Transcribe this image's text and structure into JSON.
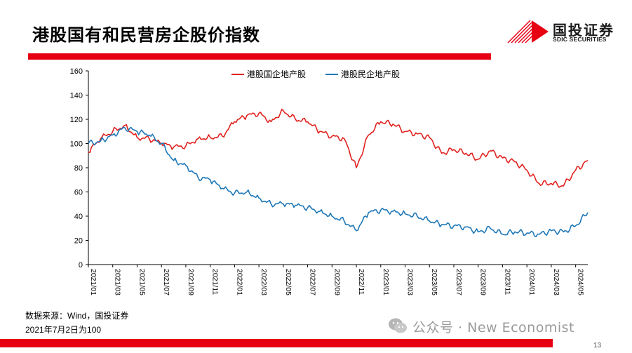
{
  "slide": {
    "title": "港股国有和民营房企股价指数",
    "logo": {
      "cn": "国投证券",
      "en": "SDIC SECURITIES"
    },
    "source_note": "数据来源：Wind，国投证券",
    "base_note": "2021年7月2日为100",
    "watermark": "公众号 · New Economist",
    "page_number": "13",
    "colors": {
      "brand_red": "#e60012",
      "series_red": "#e0231f",
      "series_blue": "#1f78b8"
    }
  },
  "chart_data": {
    "type": "line",
    "title": "",
    "xlabel": "",
    "ylabel": "",
    "ylim": [
      0,
      160
    ],
    "yticks": [
      0,
      20,
      40,
      60,
      80,
      100,
      120,
      140,
      160
    ],
    "xlim": [
      "2021/01",
      "2024/06"
    ],
    "xtick_labels": [
      "2021/01",
      "2021/03",
      "2021/05",
      "2021/07",
      "2021/09",
      "2021/11",
      "2022/01",
      "2022/03",
      "2022/05",
      "2022/07",
      "2022/09",
      "2022/11",
      "2023/01",
      "2023/03",
      "2023/05",
      "2023/07",
      "2023/09",
      "2023/11",
      "2024/01",
      "2024/03",
      "2024/05"
    ],
    "grid": false,
    "legend_position": "top",
    "series": [
      {
        "name": "港股国企地产股",
        "color": "#e0231f",
        "points": [
          [
            "2021/01",
            93
          ],
          [
            "2021/02",
            104
          ],
          [
            "2021/03",
            110
          ],
          [
            "2021/04",
            115
          ],
          [
            "2021/05",
            105
          ],
          [
            "2021/06",
            104
          ],
          [
            "2021/07",
            100
          ],
          [
            "2021/08",
            97
          ],
          [
            "2021/09",
            98
          ],
          [
            "2021/10",
            104
          ],
          [
            "2021/11",
            105
          ],
          [
            "2021/12",
            106
          ],
          [
            "2022/01",
            118
          ],
          [
            "2022/02",
            123
          ],
          [
            "2022/03",
            125
          ],
          [
            "2022/04",
            118
          ],
          [
            "2022/05",
            127
          ],
          [
            "2022/06",
            120
          ],
          [
            "2022/07",
            118
          ],
          [
            "2022/08",
            110
          ],
          [
            "2022/09",
            106
          ],
          [
            "2022/10",
            104
          ],
          [
            "2022/11",
            80
          ],
          [
            "2022/12",
            107
          ],
          [
            "2023/01",
            118
          ],
          [
            "2023/02",
            116
          ],
          [
            "2023/03",
            110
          ],
          [
            "2023/04",
            108
          ],
          [
            "2023/05",
            105
          ],
          [
            "2023/06",
            92
          ],
          [
            "2023/07",
            95
          ],
          [
            "2023/08",
            92
          ],
          [
            "2023/09",
            87
          ],
          [
            "2023/10",
            94
          ],
          [
            "2023/11",
            88
          ],
          [
            "2023/12",
            85
          ],
          [
            "2024/01",
            78
          ],
          [
            "2024/02",
            67
          ],
          [
            "2024/03",
            67
          ],
          [
            "2024/04",
            65
          ],
          [
            "2024/05",
            78
          ],
          [
            "2024/06",
            86
          ]
        ]
      },
      {
        "name": "港股民企地产股",
        "color": "#1f78b8",
        "points": [
          [
            "2021/01",
            100
          ],
          [
            "2021/02",
            102
          ],
          [
            "2021/03",
            107
          ],
          [
            "2021/04",
            113
          ],
          [
            "2021/05",
            110
          ],
          [
            "2021/06",
            107
          ],
          [
            "2021/07",
            100
          ],
          [
            "2021/08",
            86
          ],
          [
            "2021/09",
            82
          ],
          [
            "2021/10",
            72
          ],
          [
            "2021/11",
            70
          ],
          [
            "2021/12",
            63
          ],
          [
            "2022/01",
            59
          ],
          [
            "2022/02",
            60
          ],
          [
            "2022/03",
            55
          ],
          [
            "2022/04",
            50
          ],
          [
            "2022/05",
            50
          ],
          [
            "2022/06",
            49
          ],
          [
            "2022/07",
            47
          ],
          [
            "2022/08",
            44
          ],
          [
            "2022/09",
            40
          ],
          [
            "2022/10",
            36
          ],
          [
            "2022/11",
            28
          ],
          [
            "2022/12",
            43
          ],
          [
            "2023/01",
            45
          ],
          [
            "2023/02",
            44
          ],
          [
            "2023/03",
            42
          ],
          [
            "2023/04",
            40
          ],
          [
            "2023/05",
            36
          ],
          [
            "2023/06",
            33
          ],
          [
            "2023/07",
            32
          ],
          [
            "2023/08",
            31
          ],
          [
            "2023/09",
            27
          ],
          [
            "2023/10",
            30
          ],
          [
            "2023/11",
            25
          ],
          [
            "2023/12",
            27
          ],
          [
            "2024/01",
            26
          ],
          [
            "2024/02",
            25
          ],
          [
            "2024/03",
            28
          ],
          [
            "2024/04",
            27
          ],
          [
            "2024/05",
            32
          ],
          [
            "2024/06",
            43
          ]
        ]
      }
    ]
  }
}
